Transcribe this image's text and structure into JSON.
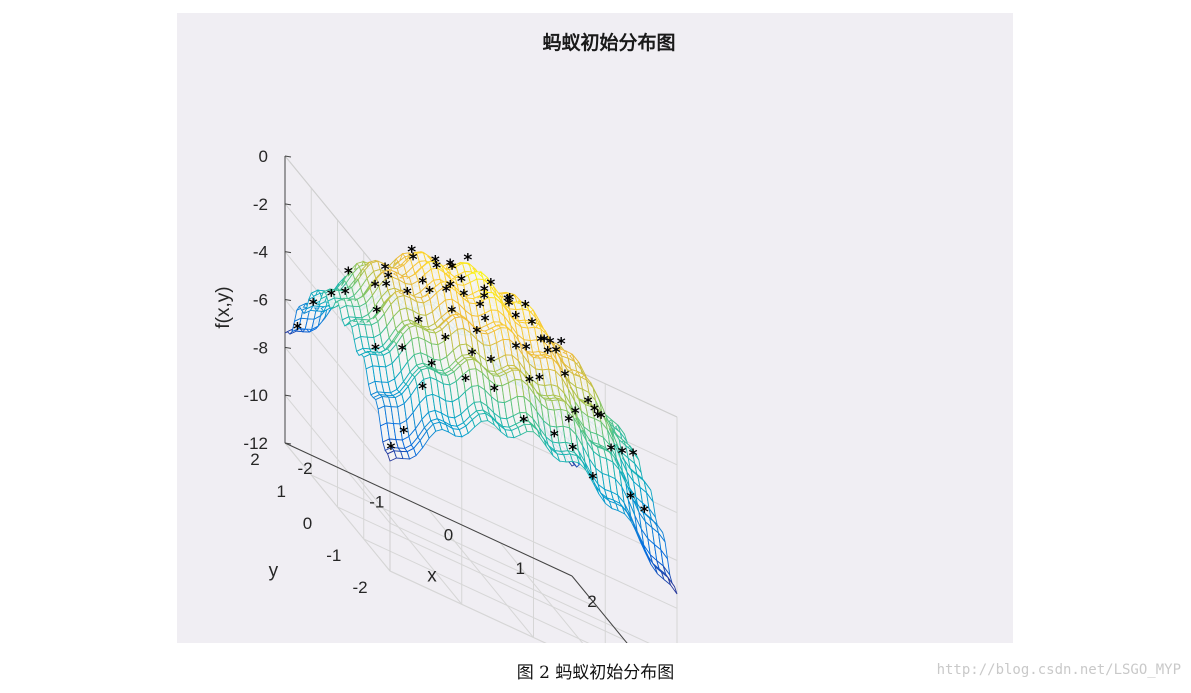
{
  "chart_data": {
    "type": "surface3d",
    "title": "蚂蚁初始分布图",
    "xlabel": "x",
    "ylabel": "y",
    "zlabel": "f(x,y)",
    "x_ticks": [
      -2,
      -1,
      0,
      1,
      2
    ],
    "y_ticks": [
      -2,
      -1,
      0,
      1,
      2
    ],
    "z_ticks": [
      0,
      -2,
      -4,
      -6,
      -8,
      -10,
      -12
    ],
    "xlim": [
      -2,
      2
    ],
    "ylim": [
      -2,
      2
    ],
    "zlim": [
      -12,
      0
    ],
    "surface": {
      "expression": "-(x^2 + y^2) + 0.3*cos(3*pi*x) + 0.3*cos(4*pi*y)",
      "colormap": "parula",
      "grid": "mesh"
    },
    "markers": {
      "symbol": "*",
      "color": "#000000",
      "points": [
        [
          -1.95,
          -1.9
        ],
        [
          -1.7,
          -1.7
        ],
        [
          -1.4,
          -1.6
        ],
        [
          -1.5,
          -1.1
        ],
        [
          -1.2,
          -0.9
        ],
        [
          -1.6,
          -0.4
        ],
        [
          -1.3,
          0.1
        ],
        [
          -0.9,
          -0.5
        ],
        [
          -0.7,
          -0.8
        ],
        [
          -0.6,
          -1.3
        ],
        [
          -0.3,
          -1.2
        ],
        [
          -0.5,
          -0.2
        ],
        [
          -0.2,
          0.2
        ],
        [
          -0.4,
          0.6
        ],
        [
          -0.1,
          0.9
        ],
        [
          0.2,
          1.2
        ],
        [
          0.3,
          0.7
        ],
        [
          0.5,
          0.3
        ],
        [
          0.1,
          -0.1
        ],
        [
          0.3,
          -0.5
        ],
        [
          0.6,
          -0.9
        ],
        [
          0.9,
          -0.4
        ],
        [
          1.0,
          0.1
        ],
        [
          1.3,
          0.5
        ],
        [
          1.5,
          0.9
        ],
        [
          1.7,
          1.3
        ],
        [
          1.9,
          1.7
        ],
        [
          1.6,
          -0.2
        ],
        [
          1.2,
          -0.8
        ],
        [
          0.8,
          -1.4
        ],
        [
          0.4,
          -1.7
        ],
        [
          -0.1,
          -1.9
        ],
        [
          -0.8,
          -1.6
        ],
        [
          -1.1,
          -0.2
        ],
        [
          -0.8,
          0.4
        ],
        [
          -0.6,
          1.0
        ],
        [
          -0.3,
          1.4
        ],
        [
          0.1,
          1.6
        ],
        [
          0.6,
          1.8
        ],
        [
          1.0,
          1.4
        ],
        [
          1.4,
          1.6
        ],
        [
          1.8,
          0.6
        ],
        [
          1.2,
          1.0
        ],
        [
          0.7,
          0.9
        ],
        [
          0.0,
          0.5
        ],
        [
          -0.2,
          -0.7
        ],
        [
          0.4,
          0.0
        ],
        [
          0.8,
          0.5
        ],
        [
          1.6,
          -1.0
        ],
        [
          1.9,
          -0.6
        ],
        [
          1.3,
          -1.4
        ],
        [
          -1.0,
          1.3
        ],
        [
          -0.7,
          1.7
        ],
        [
          -1.9,
          1.8
        ],
        [
          -1.9,
          1.2
        ],
        [
          -1.6,
          0.8
        ],
        [
          -1.3,
          1.5
        ],
        [
          -1.0,
          0.8
        ],
        [
          0.2,
          -1.3
        ],
        [
          -0.4,
          -1.6
        ],
        [
          0.9,
          -1.8
        ],
        [
          1.7,
          0.2
        ],
        [
          -1.8,
          -0.9
        ],
        [
          -1.5,
          1.6
        ],
        [
          0.0,
          1.1
        ],
        [
          0.5,
          1.4
        ],
        [
          1.1,
          0.6
        ],
        [
          -0.6,
          0.1
        ],
        [
          0.3,
          -0.9
        ],
        [
          -1.2,
          -1.4
        ],
        [
          1.5,
          -1.6
        ],
        [
          1.8,
          -1.3
        ],
        [
          -0.9,
          -1.1
        ],
        [
          -0.1,
          -0.4
        ],
        [
          0.6,
          -0.3
        ]
      ]
    }
  },
  "caption": "图 2  蚂蚁初始分布图",
  "watermark": "http://blog.csdn.net/LSGO_MYP"
}
